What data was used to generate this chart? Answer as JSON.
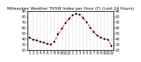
{
  "title": "Milwaukee Weather THSW Index per Hour (F) (Last 24 Hours)",
  "x_labels": [
    "1",
    "2",
    "3",
    "4",
    "5",
    "6",
    "7",
    "8",
    "9",
    "10",
    "11",
    "12",
    "1",
    "2",
    "3",
    "4",
    "5",
    "6",
    "7",
    "8",
    "9",
    "10",
    "11",
    "12"
  ],
  "hours": [
    0,
    1,
    2,
    3,
    4,
    5,
    6,
    7,
    8,
    9,
    10,
    11,
    12,
    13,
    14,
    15,
    16,
    17,
    18,
    19,
    20,
    21,
    22,
    23
  ],
  "values": [
    42,
    39,
    37,
    35,
    33,
    31,
    30,
    35,
    48,
    58,
    68,
    76,
    82,
    85,
    84,
    78,
    70,
    60,
    52,
    46,
    42,
    40,
    38,
    27
  ],
  "line_color": "#dd0000",
  "marker_color": "#000000",
  "background_color": "#ffffff",
  "grid_color": "#888888",
  "ylim": [
    20,
    90
  ],
  "y_ticks": [
    20,
    30,
    40,
    50,
    60,
    70,
    80,
    90
  ],
  "title_fontsize": 4.2,
  "tick_fontsize": 3.5,
  "linewidth": 0.7,
  "markersize": 1.6
}
